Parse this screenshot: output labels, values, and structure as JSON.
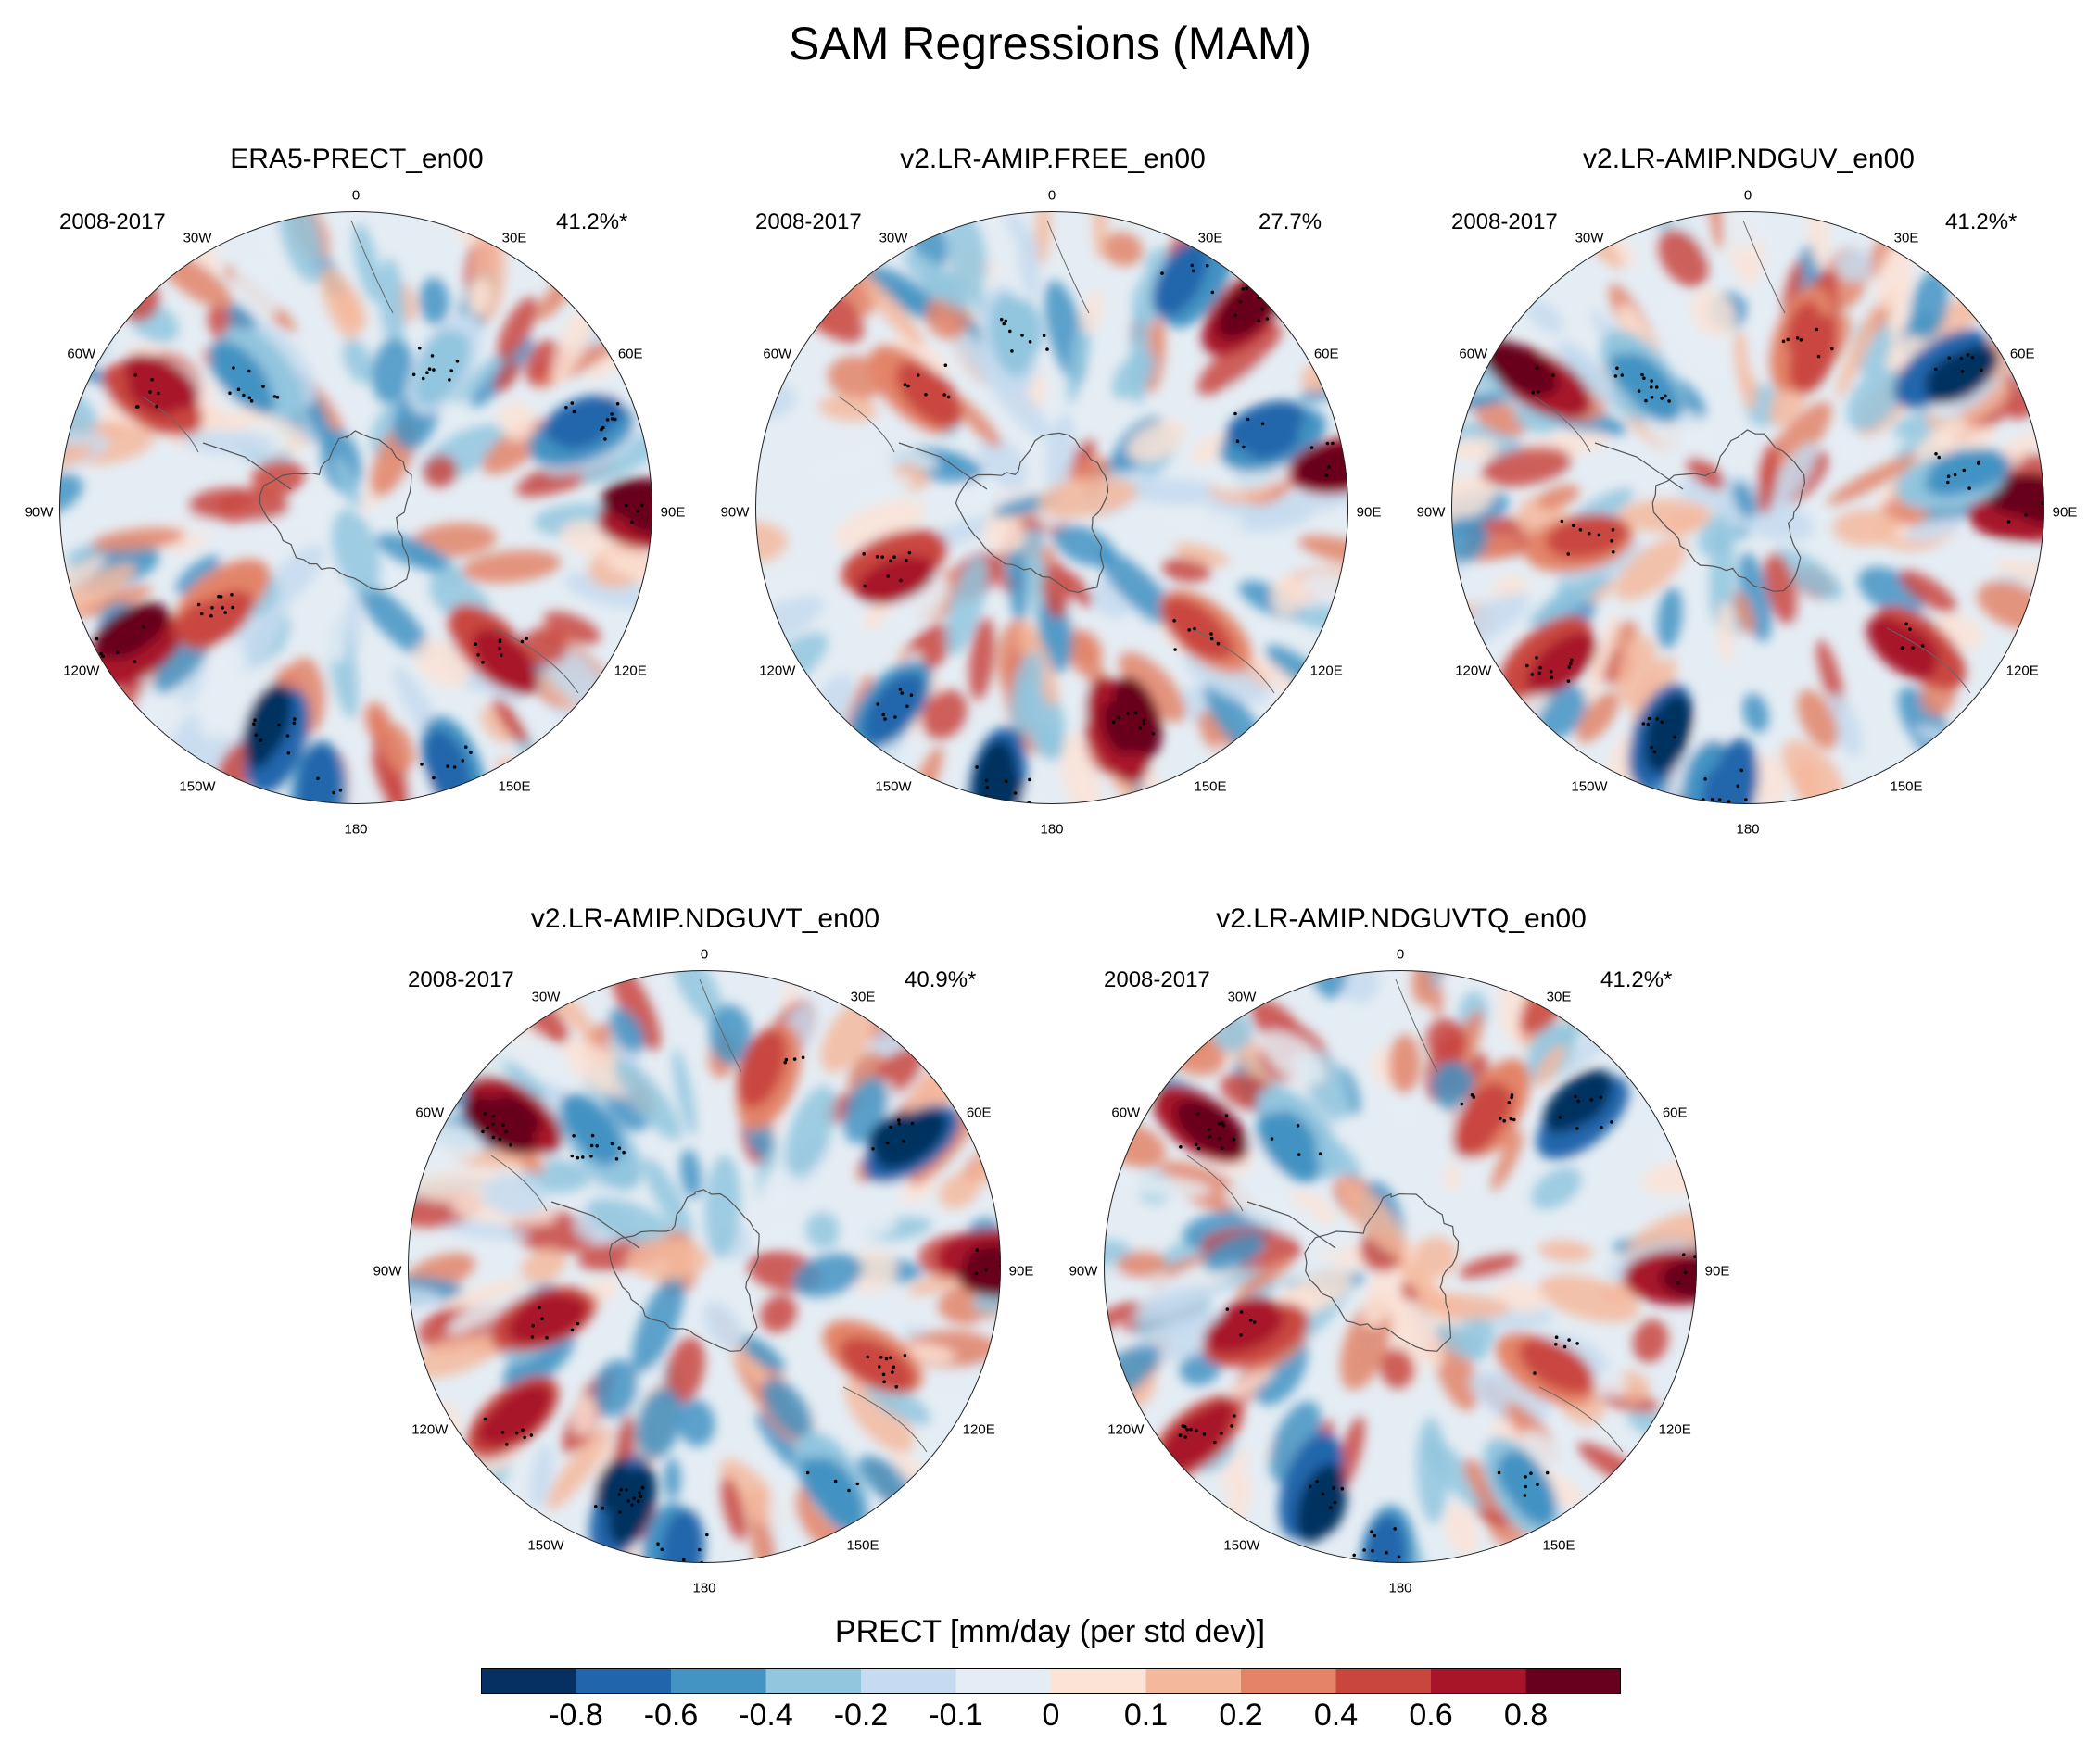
{
  "figure": {
    "title": "SAM Regressions (MAM)"
  },
  "chart_data": [
    {
      "type": "heatmap",
      "projection": "south-polar-stereographic",
      "title": "ERA5-PRECT_en00",
      "period": "2008-2017",
      "explained_variance": "41.2%*",
      "stippling": "significant regions dotted",
      "dominant_pattern": "negative anomalies near 150W-180; positive near 60W and 90E"
    },
    {
      "type": "heatmap",
      "projection": "south-polar-stereographic",
      "title": "v2.LR-AMIP.FREE_en00",
      "period": "2008-2017",
      "explained_variance": "27.7%",
      "dominant_pattern": "positive anomalies near 120E-150E and 90W-120W"
    },
    {
      "type": "heatmap",
      "projection": "south-polar-stereographic",
      "title": "v2.LR-AMIP.NDGUV_en00",
      "period": "2008-2017",
      "explained_variance": "41.2%*",
      "dominant_pattern": "negative anomalies near 150W-180; positive near 60W"
    },
    {
      "type": "heatmap",
      "projection": "south-polar-stereographic",
      "title": "v2.LR-AMIP.NDGUVT_en00",
      "period": "2008-2017",
      "explained_variance": "40.9%*",
      "dominant_pattern": "negative anomalies near 150W-180; positive near 60W"
    },
    {
      "type": "heatmap",
      "projection": "south-polar-stereographic",
      "title": "v2.LR-AMIP.NDGUVTQ_en00",
      "period": "2008-2017",
      "explained_variance": "41.2%*",
      "dominant_pattern": "negative anomalies near 150W-180; positive near 60W"
    }
  ],
  "longitude_labels": [
    "0",
    "30E",
    "60E",
    "90E",
    "120E",
    "150E",
    "180",
    "150W",
    "120W",
    "90W",
    "60W",
    "30W"
  ],
  "colorbar": {
    "label": "PRECT [mm/day (per std dev)]",
    "tick_labels": [
      "-0.8",
      "-0.6",
      "-0.4",
      "-0.2",
      "-0.1",
      "0",
      "0.1",
      "0.2",
      "0.4",
      "0.6",
      "0.8"
    ],
    "colors": [
      "#053061",
      "#2166ac",
      "#4393c3",
      "#92c5de",
      "#c6dbef",
      "#e5edf4",
      "#fbe3d6",
      "#f4b89d",
      "#e38469",
      "#c9463f",
      "#a8152a",
      "#67001f"
    ]
  }
}
